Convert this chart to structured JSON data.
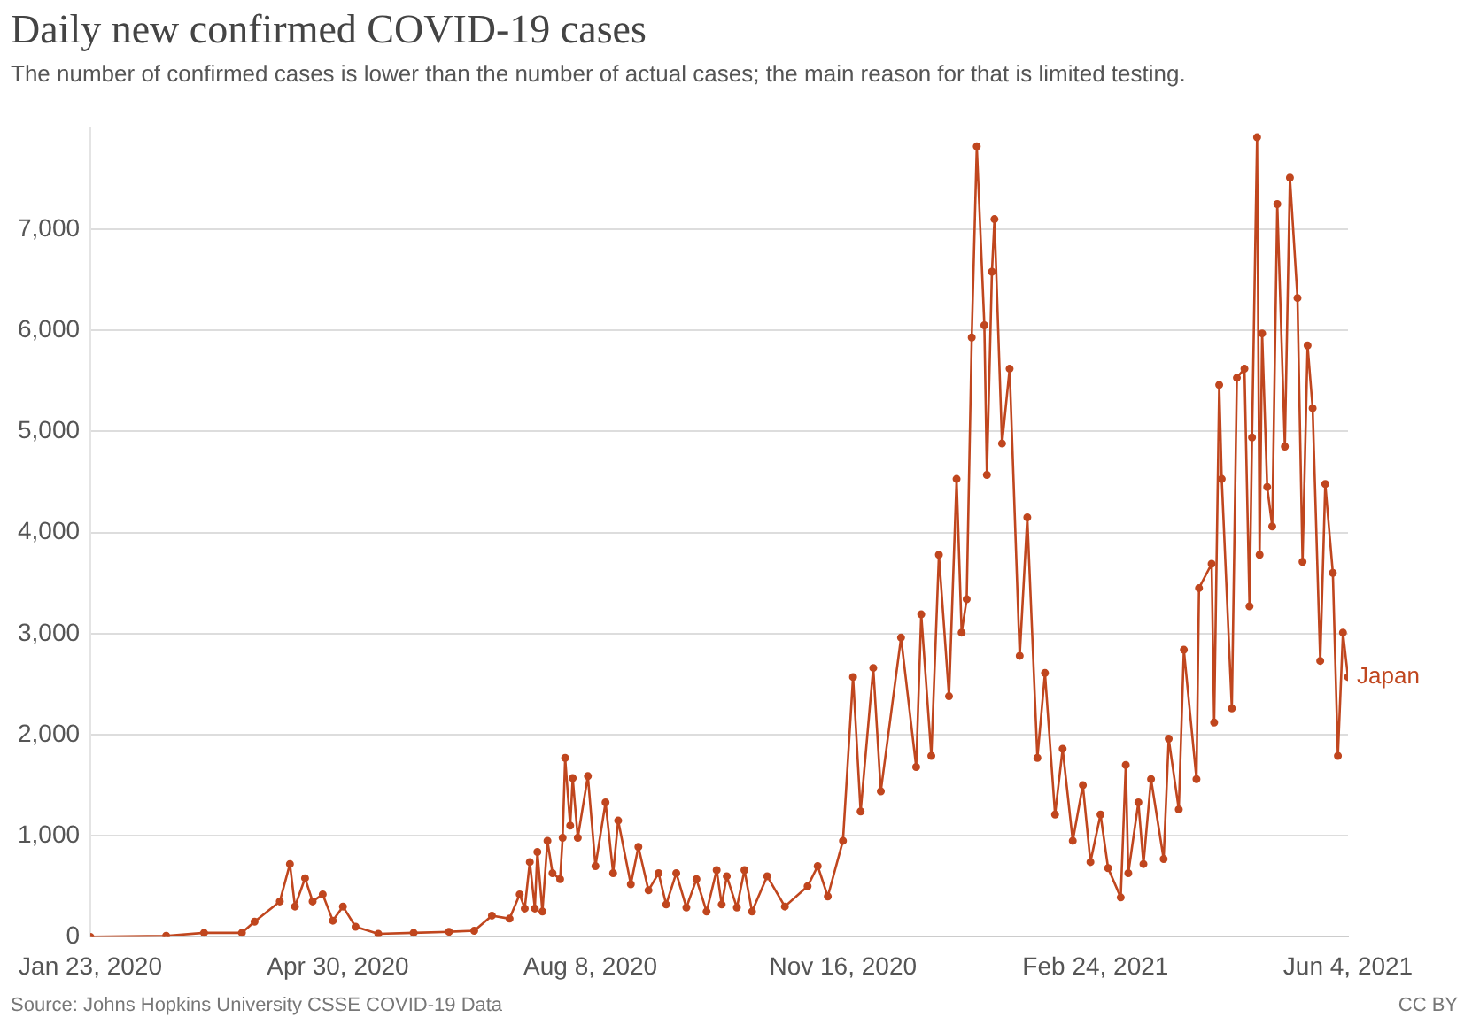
{
  "chart_data": {
    "type": "line",
    "title": "Daily new confirmed COVID-19 cases",
    "subtitle": "The number of confirmed cases is lower than the number of actual cases; the main reason for that is limited testing.",
    "annotations": [
      "Source: Johns Hopkins University CSSE COVID-19 Data",
      "CC BY"
    ],
    "xlim": [
      "2020-01-23",
      "2021-06-04"
    ],
    "xticks": [
      {
        "value": "2020-01-23",
        "label": "Jan 23, 2020"
      },
      {
        "value": "2020-04-30",
        "label": "Apr 30, 2020"
      },
      {
        "value": "2020-08-08",
        "label": "Aug 8, 2020"
      },
      {
        "value": "2020-11-16",
        "label": "Nov 16, 2020"
      },
      {
        "value": "2021-02-24",
        "label": "Feb 24, 2021"
      },
      {
        "value": "2021-06-04",
        "label": "Jun 4, 2021"
      }
    ],
    "ylim": [
      0,
      8000
    ],
    "yticks": [
      {
        "value": 0,
        "label": "0"
      },
      {
        "value": 1000,
        "label": "1,000"
      },
      {
        "value": 2000,
        "label": "2,000"
      },
      {
        "value": 3000,
        "label": "3,000"
      },
      {
        "value": 4000,
        "label": "4,000"
      },
      {
        "value": 5000,
        "label": "5,000"
      },
      {
        "value": 6000,
        "label": "6,000"
      },
      {
        "value": 7000,
        "label": "7,000"
      }
    ],
    "grid": "y",
    "legend": false,
    "marker": "circle",
    "line_style": "solid",
    "series": [
      {
        "name": "Japan",
        "color": "#c0461e",
        "x": [
          "2020-01-23",
          "2020-02-22",
          "2020-03-08",
          "2020-03-23",
          "2020-03-28",
          "2020-04-07",
          "2020-04-11",
          "2020-04-13",
          "2020-04-17",
          "2020-04-20",
          "2020-04-24",
          "2020-04-28",
          "2020-05-02",
          "2020-05-07",
          "2020-05-16",
          "2020-05-30",
          "2020-06-13",
          "2020-06-23",
          "2020-06-30",
          "2020-07-07",
          "2020-07-11",
          "2020-07-13",
          "2020-07-15",
          "2020-07-17",
          "2020-07-18",
          "2020-07-20",
          "2020-07-22",
          "2020-07-24",
          "2020-07-27",
          "2020-07-28",
          "2020-07-29",
          "2020-07-31",
          "2020-08-01",
          "2020-08-03",
          "2020-08-07",
          "2020-08-10",
          "2020-08-14",
          "2020-08-17",
          "2020-08-19",
          "2020-08-24",
          "2020-08-27",
          "2020-08-31",
          "2020-09-04",
          "2020-09-07",
          "2020-09-11",
          "2020-09-15",
          "2020-09-19",
          "2020-09-23",
          "2020-09-27",
          "2020-09-29",
          "2020-10-01",
          "2020-10-05",
          "2020-10-08",
          "2020-10-11",
          "2020-10-17",
          "2020-10-24",
          "2020-11-02",
          "2020-11-06",
          "2020-11-10",
          "2020-11-16",
          "2020-11-20",
          "2020-11-23",
          "2020-11-28",
          "2020-12-01",
          "2020-12-09",
          "2020-12-15",
          "2020-12-17",
          "2020-12-21",
          "2020-12-24",
          "2020-12-28",
          "2020-12-31",
          "2021-01-02",
          "2021-01-04",
          "2021-01-06",
          "2021-01-08",
          "2021-01-11",
          "2021-01-12",
          "2021-01-14",
          "2021-01-15",
          "2021-01-18",
          "2021-01-21",
          "2021-01-25",
          "2021-01-28",
          "2021-02-01",
          "2021-02-04",
          "2021-02-08",
          "2021-02-11",
          "2021-02-15",
          "2021-02-19",
          "2021-02-22",
          "2021-02-26",
          "2021-03-01",
          "2021-03-06",
          "2021-03-08",
          "2021-03-09",
          "2021-03-13",
          "2021-03-15",
          "2021-03-18",
          "2021-03-23",
          "2021-03-25",
          "2021-03-29",
          "2021-03-31",
          "2021-04-05",
          "2021-04-06",
          "2021-04-11",
          "2021-04-12",
          "2021-04-14",
          "2021-04-15",
          "2021-04-19",
          "2021-04-21",
          "2021-04-24",
          "2021-04-26",
          "2021-04-27",
          "2021-04-29",
          "2021-04-30",
          "2021-05-01",
          "2021-05-03",
          "2021-05-05",
          "2021-05-07",
          "2021-05-10",
          "2021-05-12",
          "2021-05-15",
          "2021-05-17",
          "2021-05-19",
          "2021-05-21",
          "2021-05-24",
          "2021-05-26",
          "2021-05-29",
          "2021-05-31",
          "2021-06-02",
          "2021-06-04"
        ],
        "values": [
          0,
          10,
          40,
          40,
          150,
          350,
          720,
          300,
          580,
          350,
          420,
          160,
          300,
          100,
          30,
          40,
          50,
          60,
          210,
          180,
          420,
          280,
          740,
          280,
          840,
          250,
          950,
          630,
          570,
          980,
          1770,
          1100,
          1570,
          980,
          1590,
          700,
          1330,
          630,
          1150,
          520,
          890,
          460,
          630,
          320,
          630,
          290,
          570,
          250,
          660,
          320,
          600,
          290,
          660,
          250,
          600,
          300,
          500,
          700,
          400,
          950,
          2570,
          1240,
          2660,
          1440,
          2960,
          1680,
          3190,
          1790,
          3780,
          2380,
          4530,
          3010,
          3340,
          5930,
          7820,
          6050,
          4570,
          6580,
          7100,
          4880,
          5620,
          2780,
          4150,
          1770,
          2610,
          1210,
          1860,
          950,
          1500,
          740,
          1210,
          680,
          390,
          1700,
          630,
          1330,
          720,
          1560,
          770,
          1960,
          1260,
          2840,
          1560,
          3450,
          3690,
          2120,
          5460,
          4530,
          2260,
          5530,
          5620,
          3270,
          4940,
          7910,
          3780,
          5970,
          4450,
          4060,
          7250,
          4850,
          7510,
          6320,
          3710,
          5850,
          5230,
          2730,
          4480,
          3600,
          1790,
          3010,
          2570
        ]
      }
    ]
  }
}
